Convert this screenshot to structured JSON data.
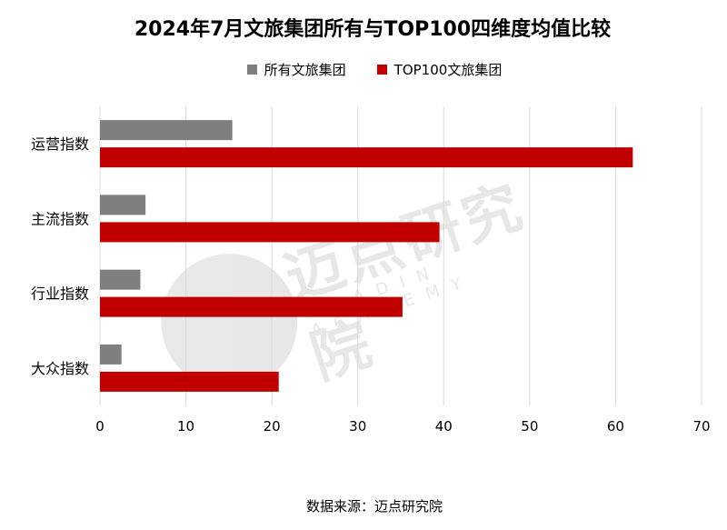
{
  "title": "2024年7月文旅集团所有与TOP100四维度均值比较",
  "source": "数据来源：迈点研究院",
  "watermark": {
    "text": "迈点研究院",
    "subtext": "MEADIN ACADEMY"
  },
  "chart_data": {
    "type": "bar",
    "orientation": "horizontal",
    "categories": [
      "运营指数",
      "主流指数",
      "行业指数",
      "大众指数"
    ],
    "series": [
      {
        "name": "所有文旅集团",
        "color": "#7f7f7f",
        "values": [
          15.4,
          5.3,
          4.7,
          2.5
        ]
      },
      {
        "name": "TOP100文旅集团",
        "color": "#c00000",
        "values": [
          62.0,
          39.5,
          35.2,
          20.8
        ]
      }
    ],
    "xlim": [
      0,
      70
    ],
    "xticks": [
      0,
      10,
      20,
      30,
      40,
      50,
      60,
      70
    ],
    "grid": true,
    "legend_position": "top"
  }
}
